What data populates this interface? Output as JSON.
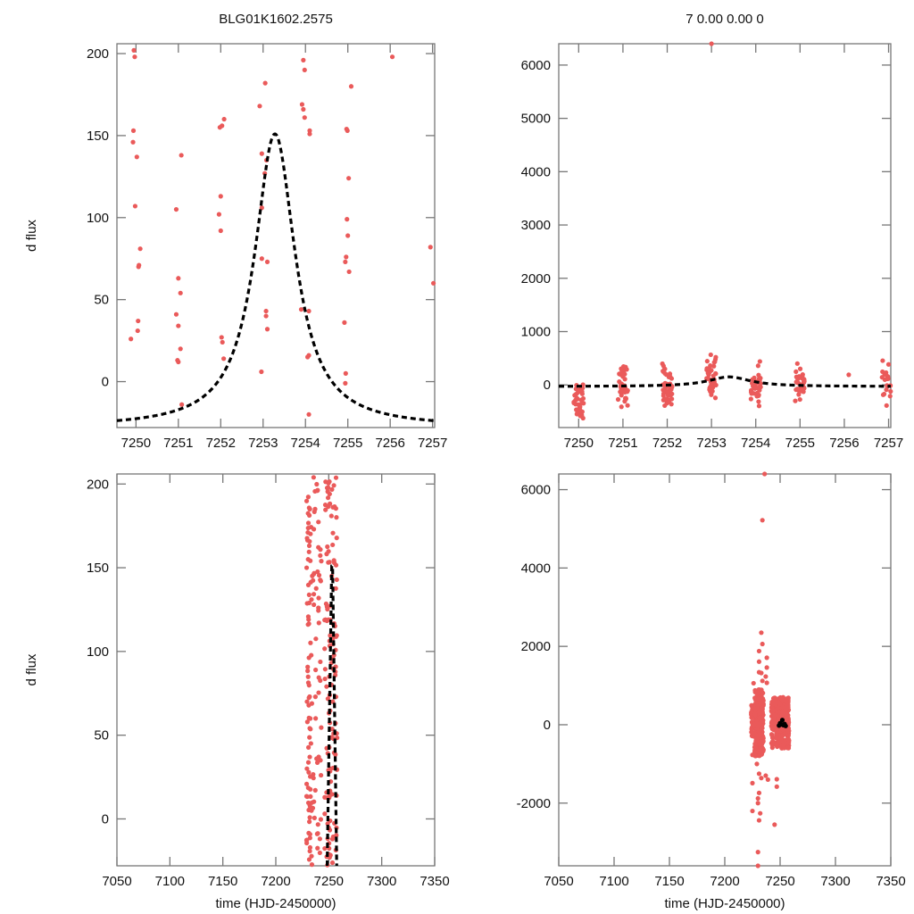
{
  "chart_data": [
    {
      "type": "scatter",
      "panel": "top-left",
      "title": "BLG01K1602.2575",
      "xlabel": "",
      "ylabel": "d flux",
      "xlim": [
        7249.55,
        7257.05
      ],
      "ylim": [
        -28,
        206
      ],
      "xticks": [
        7250,
        7251,
        7252,
        7253,
        7254,
        7255,
        7256,
        7257
      ],
      "xtick_labels": [
        "7250",
        "7251",
        "7252",
        "7253",
        "7254",
        "7255",
        "7256",
        "7257"
      ],
      "yticks": [
        0,
        50,
        100,
        150,
        200
      ],
      "ytick_labels": [
        "0",
        "50",
        "100",
        "150",
        "200"
      ],
      "grid": false,
      "points": [
        [
          7249.95,
          202
        ],
        [
          7249.97,
          198
        ],
        [
          7249.94,
          153
        ],
        [
          7249.93,
          146
        ],
        [
          7250.02,
          137
        ],
        [
          7249.98,
          107
        ],
        [
          7250.1,
          81
        ],
        [
          7250.07,
          71
        ],
        [
          7250.06,
          70
        ],
        [
          7250.05,
          37
        ],
        [
          7250.04,
          31
        ],
        [
          7249.88,
          26
        ],
        [
          7251.07,
          138
        ],
        [
          7250.95,
          105
        ],
        [
          7251.0,
          63
        ],
        [
          7251.05,
          54
        ],
        [
          7250.95,
          41
        ],
        [
          7251.0,
          34
        ],
        [
          7251.05,
          20
        ],
        [
          7250.98,
          13
        ],
        [
          7251.0,
          12
        ],
        [
          7251.08,
          -14
        ],
        [
          7252.08,
          160
        ],
        [
          7252.03,
          156
        ],
        [
          7251.98,
          155
        ],
        [
          7252.0,
          113
        ],
        [
          7251.96,
          102
        ],
        [
          7252.0,
          92
        ],
        [
          7252.02,
          27
        ],
        [
          7252.04,
          24
        ],
        [
          7252.07,
          14
        ],
        [
          7252.92,
          168
        ],
        [
          7253.05,
          182
        ],
        [
          7252.97,
          139
        ],
        [
          7253.08,
          135
        ],
        [
          7253.04,
          127
        ],
        [
          7252.97,
          106
        ],
        [
          7252.97,
          75
        ],
        [
          7253.1,
          73
        ],
        [
          7253.07,
          43
        ],
        [
          7253.07,
          40
        ],
        [
          7253.1,
          32
        ],
        [
          7252.96,
          6
        ],
        [
          7253.95,
          196
        ],
        [
          7253.98,
          190
        ],
        [
          7253.92,
          169
        ],
        [
          7253.95,
          166
        ],
        [
          7253.98,
          161
        ],
        [
          7254.1,
          153
        ],
        [
          7254.1,
          151
        ],
        [
          7253.9,
          44
        ],
        [
          7254.08,
          43
        ],
        [
          7254.05,
          15
        ],
        [
          7254.08,
          16
        ],
        [
          7254.08,
          -20
        ],
        [
          7255.08,
          180
        ],
        [
          7254.97,
          154
        ],
        [
          7254.99,
          153
        ],
        [
          7255.02,
          124
        ],
        [
          7254.98,
          99
        ],
        [
          7255.0,
          89
        ],
        [
          7254.96,
          76
        ],
        [
          7254.94,
          73
        ],
        [
          7255.03,
          67
        ],
        [
          7254.92,
          36
        ],
        [
          7254.95,
          5
        ],
        [
          7254.94,
          -1
        ],
        [
          7256.05,
          198
        ],
        [
          7256.95,
          82
        ],
        [
          7257.02,
          60
        ]
      ],
      "model": {
        "type": "Paczynski-like peak",
        "t0": 7253.28,
        "peak": 151,
        "baseline": -28
      }
    },
    {
      "type": "scatter",
      "panel": "top-right",
      "title": "7  0.00  0.00  0",
      "xlabel": "",
      "ylabel": "",
      "xlim": [
        7249.55,
        7257.05
      ],
      "ylim": [
        -800,
        6400
      ],
      "xticks": [
        7250,
        7251,
        7252,
        7253,
        7254,
        7255,
        7256,
        7257
      ],
      "xtick_labels": [
        "7250",
        "7251",
        "7252",
        "7253",
        "7254",
        "7255",
        "7256",
        "7257"
      ],
      "yticks": [
        0,
        1000,
        2000,
        3000,
        4000,
        5000,
        6000
      ],
      "ytick_labels": [
        "0",
        "1000",
        "2000",
        "3000",
        "4000",
        "5000",
        "6000"
      ],
      "grid": false,
      "clusters": [
        {
          "center": 7250.0,
          "n": 40,
          "ymin": -800,
          "ymax": 280
        },
        {
          "center": 7251.0,
          "n": 40,
          "ymin": -450,
          "ymax": 480
        },
        {
          "center": 7252.0,
          "n": 45,
          "ymin": -650,
          "ymax": 510
        },
        {
          "center": 7253.0,
          "n": 40,
          "ymin": -320,
          "ymax": 650
        },
        {
          "center": 7254.0,
          "n": 40,
          "ymin": -450,
          "ymax": 440
        },
        {
          "center": 7255.0,
          "n": 35,
          "ymin": -300,
          "ymax": 400
        },
        {
          "center": 7256.95,
          "n": 20,
          "ymin": -400,
          "ymax": 510
        }
      ],
      "extra_points": [
        [
          7253.0,
          6400
        ],
        [
          7256.1,
          190
        ]
      ],
      "model": {
        "t0": 7253.4,
        "peak": 150,
        "baseline": -30
      }
    },
    {
      "type": "scatter",
      "panel": "bottom-left",
      "title": "",
      "xlabel": "time (HJD-2450000)",
      "ylabel": "d flux",
      "xlim": [
        7050,
        7350
      ],
      "ylim": [
        -28,
        206
      ],
      "xticks": [
        7050,
        7100,
        7150,
        7200,
        7250,
        7300,
        7350
      ],
      "xtick_labels": [
        "7050",
        "7100",
        "7150",
        "7200",
        "7250",
        "7300",
        "7350"
      ],
      "yticks": [
        0,
        50,
        100,
        150,
        200
      ],
      "ytick_labels": [
        "0",
        "50",
        "100",
        "150",
        "200"
      ],
      "grid": false,
      "scatter_region": {
        "xmin": 7225,
        "xmax": 7258,
        "ymin": -28,
        "ymax": 205,
        "n": 260
      },
      "model": {
        "t0": 7253.3,
        "peak": 151,
        "baseline": -28
      }
    },
    {
      "type": "scatter",
      "panel": "bottom-right",
      "title": "",
      "xlabel": "time (HJD-2450000)",
      "ylabel": "",
      "xlim": [
        7050,
        7350
      ],
      "ylim": [
        -3600,
        6400
      ],
      "xticks": [
        7050,
        7100,
        7150,
        7200,
        7250,
        7300,
        7350
      ],
      "xtick_labels": [
        "7050",
        "7100",
        "7150",
        "7200",
        "7250",
        "7300",
        "7350"
      ],
      "yticks": [
        -2000,
        0,
        2000,
        4000,
        6000
      ],
      "ytick_labels": [
        "-2000",
        "0",
        "2000",
        "4000",
        "6000"
      ],
      "grid": false,
      "clusters": [
        {
          "x": 7225,
          "width": 1.2,
          "n": 40,
          "ymin": -300,
          "ymax": 500
        },
        {
          "x": 7231,
          "width": 4,
          "n": 260,
          "ymin": -800,
          "ymax": 900
        },
        {
          "x": 7250,
          "width": 8,
          "n": 360,
          "ymin": -600,
          "ymax": 700
        }
      ],
      "extra_points": [
        [
          7236,
          6400
        ],
        [
          7234,
          5220
        ],
        [
          7233,
          2350
        ],
        [
          7234,
          2060
        ],
        [
          7231,
          1880
        ],
        [
          7231,
          1610
        ],
        [
          7238,
          1710
        ],
        [
          7238,
          1460
        ],
        [
          7231,
          1340
        ],
        [
          7233,
          1320
        ],
        [
          7237,
          1230
        ],
        [
          7238,
          1070
        ],
        [
          7234,
          1120
        ],
        [
          7226,
          1060
        ],
        [
          7225,
          -770
        ],
        [
          7229,
          -1000
        ],
        [
          7231,
          -1250
        ],
        [
          7233,
          -1360
        ],
        [
          7237,
          -1300
        ],
        [
          7239,
          -1400
        ],
        [
          7225,
          -1490
        ],
        [
          7247,
          -1390
        ],
        [
          7247,
          -1580
        ],
        [
          7231,
          -1740
        ],
        [
          7230,
          -1880
        ],
        [
          7230,
          -2000
        ],
        [
          7225,
          -2200
        ],
        [
          7232,
          -2260
        ],
        [
          7231,
          -2440
        ],
        [
          7245,
          -2550
        ],
        [
          7230,
          -3250
        ],
        [
          7230,
          -3600
        ]
      ],
      "model_points": [
        [
          7252,
          120
        ],
        [
          7250,
          40
        ],
        [
          7251,
          10
        ],
        [
          7254,
          20
        ],
        [
          7253,
          -10
        ],
        [
          7249,
          -20
        ],
        [
          7255,
          -30
        ]
      ]
    }
  ]
}
